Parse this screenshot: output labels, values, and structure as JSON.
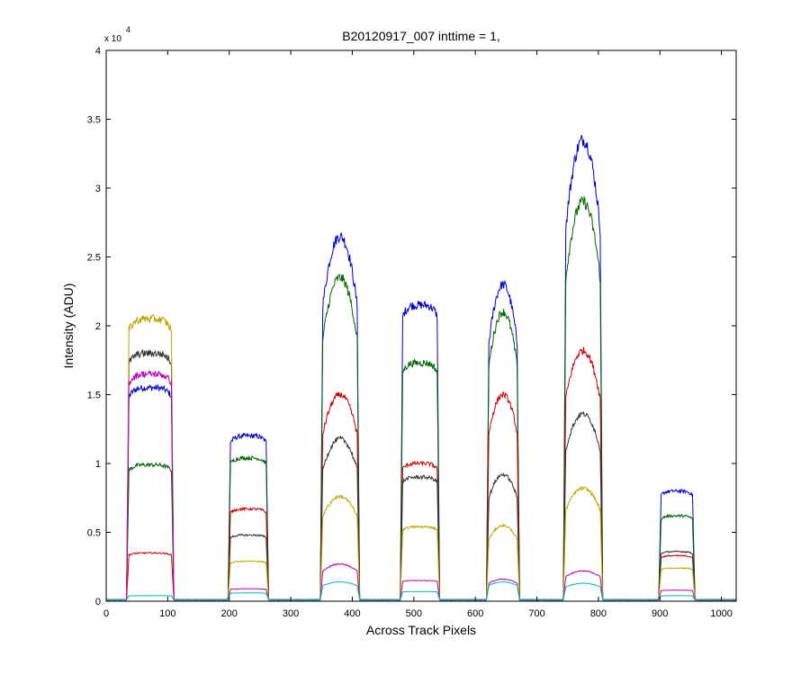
{
  "chart_data": {
    "type": "line",
    "title": "B20120917_007 inttime = 1,",
    "xlabel": "Across Track Pixels",
    "ylabel": "Intensity (ADU)",
    "y_exponent_label": "x 10",
    "y_exponent_power": "4",
    "xlim": [
      0,
      1024
    ],
    "ylim": [
      0,
      4
    ],
    "x_ticks": [
      0,
      100,
      200,
      300,
      400,
      500,
      600,
      700,
      800,
      900,
      1000
    ],
    "y_ticks": [
      0,
      0.5,
      1,
      1.5,
      2,
      2.5,
      3,
      3.5,
      4
    ],
    "y_tick_labels": [
      "0",
      "0.5",
      "1",
      "1.5",
      "2",
      "2.5",
      "3",
      "3.5",
      "4"
    ],
    "grid": false,
    "legend": "none",
    "baseline": 0.01,
    "peaks": [
      {
        "start": 35,
        "end": 108
      },
      {
        "start": 200,
        "end": 262
      },
      {
        "start": 350,
        "end": 410
      },
      {
        "start": 480,
        "end": 540
      },
      {
        "start": 620,
        "end": 670
      },
      {
        "start": 745,
        "end": 805
      },
      {
        "start": 900,
        "end": 955
      }
    ],
    "series": [
      {
        "color": "#0000cc",
        "levels": [
          1.55,
          1.2,
          2.65,
          2.15,
          2.3,
          3.35,
          0.8
        ],
        "shapes": [
          "flat",
          "flat",
          "dome",
          "flat",
          "dome",
          "dome",
          "flat"
        ]
      },
      {
        "color": "#006400",
        "levels": [
          0.99,
          1.04,
          2.35,
          1.73,
          2.1,
          2.9,
          0.62
        ],
        "shapes": [
          "flat",
          "flat",
          "dome",
          "flat",
          "dome",
          "dome",
          "flat"
        ]
      },
      {
        "color": "#cc0000",
        "levels": [
          0.35,
          0.67,
          1.5,
          1.0,
          1.5,
          1.82,
          0.33
        ],
        "shapes": [
          "flat",
          "flat",
          "dome",
          "flat",
          "dome",
          "dome",
          "flat"
        ]
      },
      {
        "color": "#333333",
        "levels": [
          1.8,
          0.48,
          1.18,
          0.9,
          0.92,
          1.36,
          0.36
        ],
        "shapes": [
          "flat",
          "flat",
          "dome",
          "flat",
          "dome",
          "dome",
          "flat"
        ]
      },
      {
        "color": "#bbaa00",
        "levels": [
          2.05,
          0.29,
          0.76,
          0.54,
          0.55,
          0.82,
          0.24
        ],
        "shapes": [
          "flat",
          "flat",
          "dome",
          "flat",
          "dome",
          "dome",
          "flat"
        ]
      },
      {
        "color": "#bb00bb",
        "levels": [
          1.65,
          0.09,
          0.27,
          0.15,
          0.16,
          0.22,
          0.08
        ],
        "shapes": [
          "flat",
          "flat",
          "dome",
          "flat",
          "dome",
          "dome",
          "flat"
        ]
      },
      {
        "color": "#00bbbb",
        "levels": [
          0.04,
          0.06,
          0.14,
          0.07,
          0.14,
          0.13,
          0.04
        ],
        "shapes": [
          "flat",
          "flat",
          "dome",
          "flat",
          "dome",
          "dome",
          "flat"
        ]
      }
    ]
  }
}
